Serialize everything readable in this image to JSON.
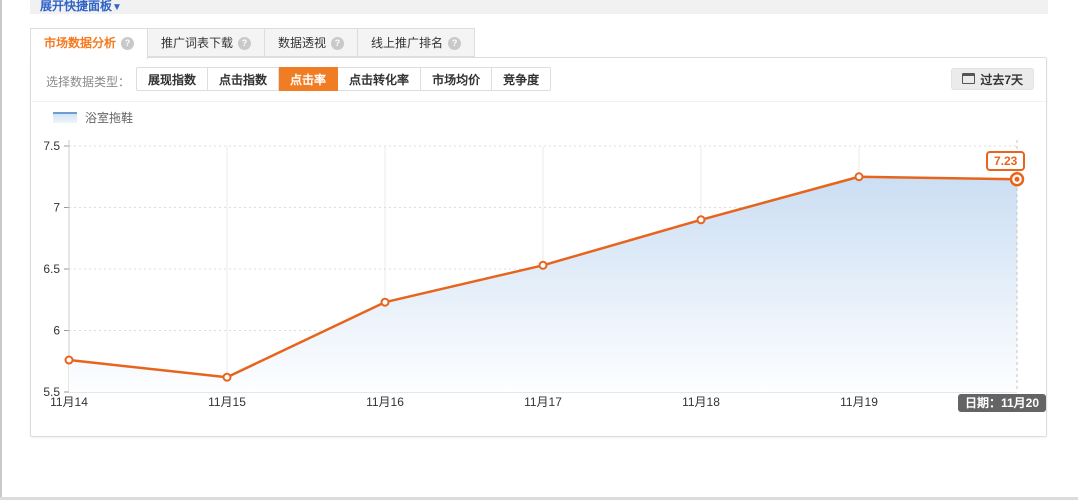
{
  "quick_panel": {
    "label": "展开快捷面板",
    "arrow_icon": "▼"
  },
  "tabs": {
    "help_glyph": "?",
    "items": [
      {
        "label": "市场数据分析",
        "active": true
      },
      {
        "label": "推广词表下载",
        "active": false
      },
      {
        "label": "数据透视",
        "active": false
      },
      {
        "label": "线上推广排名",
        "active": false
      }
    ]
  },
  "selector": {
    "label": "选择数据类型：",
    "buttons": [
      {
        "label": "展现指数",
        "active": false
      },
      {
        "label": "点击指数",
        "active": false
      },
      {
        "label": "点击率",
        "active": true
      },
      {
        "label": "点击转化率",
        "active": false
      },
      {
        "label": "市场均价",
        "active": false
      },
      {
        "label": "竞争度",
        "active": false
      }
    ]
  },
  "date_filter": {
    "label": "过去7天"
  },
  "legend": {
    "series_label": "浴室拖鞋"
  },
  "chart_data": {
    "type": "area",
    "title": "",
    "x": [
      "11月14",
      "11月15",
      "11月16",
      "11月17",
      "11月18",
      "11月19",
      "11月20"
    ],
    "series": [
      {
        "name": "浴室拖鞋",
        "values": [
          5.76,
          5.62,
          6.23,
          6.53,
          6.9,
          7.25,
          7.23
        ]
      }
    ],
    "ylim": [
      5.5,
      7.5
    ],
    "yticks": [
      "5.5",
      "6",
      "6.5",
      "7",
      "7.5"
    ],
    "grid": true,
    "legend_position": "top-left",
    "xlabel": "",
    "ylabel": "",
    "line_color": "#e8641c",
    "area_top_color": "#cbdef3",
    "area_bottom_color": "#fdfeff",
    "last_value_label": "7.23",
    "tooltip": "日期：11月20"
  },
  "colors": {
    "accent_orange": "#f07c23",
    "tab_active_orange": "#f57b21",
    "line_orange": "#e8641c",
    "link_blue": "#2f63c8",
    "tooltip_bg": "#646464"
  }
}
